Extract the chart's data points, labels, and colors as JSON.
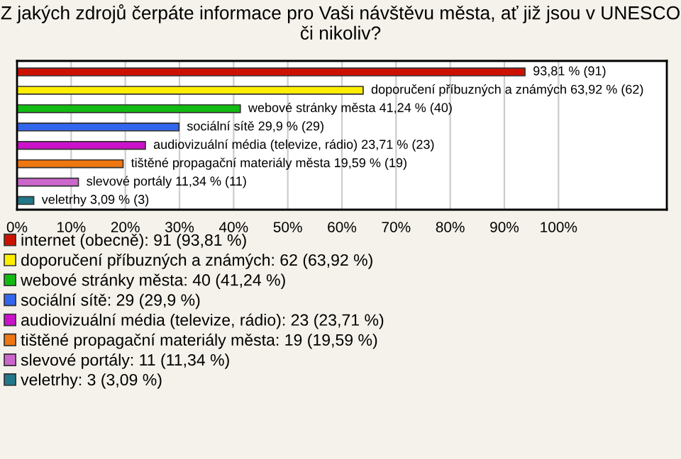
{
  "chart_data": {
    "type": "bar",
    "orientation": "horizontal",
    "title": "Z jakých zdrojů čerpáte informace pro Vaši návštěvu města, ať již jsou v UNESCO či nikoliv?",
    "categories": [
      null,
      null,
      null,
      null,
      null,
      null,
      null,
      null
    ],
    "series": [
      {
        "name": "internet (obecně): 91 (93,81 %)",
        "color": "#cc1100",
        "values": [
          93.81,
          null,
          null,
          null,
          null,
          null,
          null,
          null
        ],
        "value_labels": [
          "93,81 % (91)",
          null,
          null,
          null,
          null,
          null,
          null,
          null
        ]
      },
      {
        "name": "doporučení příbuzných a známých: 62 (63,92 %)",
        "color": "#ffee00",
        "values": [
          null,
          63.92,
          null,
          null,
          null,
          null,
          null,
          null
        ],
        "value_labels": [
          null,
          "doporučení příbuzných a známých 63,92 % (62)",
          null,
          null,
          null,
          null,
          null,
          null
        ]
      },
      {
        "name": "webové stránky města: 40 (41,24 %)",
        "color": "#11bb11",
        "values": [
          null,
          null,
          41.24,
          null,
          null,
          null,
          null,
          null
        ],
        "value_labels": [
          null,
          null,
          "webové stránky města 41,24 % (40)",
          null,
          null,
          null,
          null,
          null
        ]
      },
      {
        "name": "sociální sítě: 29 (29,9 %)",
        "color": "#3366ee",
        "values": [
          null,
          null,
          null,
          29.9,
          null,
          null,
          null,
          null
        ],
        "value_labels": [
          null,
          null,
          null,
          "sociální sítě 29,9 % (29)",
          null,
          null,
          null,
          null
        ]
      },
      {
        "name": "audiovizuální média (televize, rádio): 23 (23,71 %)",
        "color": "#cc11cc",
        "values": [
          null,
          null,
          null,
          null,
          23.71,
          null,
          null,
          null
        ],
        "value_labels": [
          null,
          null,
          null,
          null,
          "audiovizuální média (televize, rádio) 23,71 % (23)",
          null,
          null,
          null
        ]
      },
      {
        "name": "tištěné propagační materiály města: 19 (19,59 %)",
        "color": "#ee7711",
        "values": [
          null,
          null,
          null,
          null,
          null,
          19.59,
          null,
          null
        ],
        "value_labels": [
          null,
          null,
          null,
          null,
          null,
          "tištěné propagační materiály města 19,59 % (19)",
          null,
          null
        ]
      },
      {
        "name": "slevové portály: 11 (11,34 %)",
        "color": "#cc66cc",
        "values": [
          null,
          null,
          null,
          null,
          null,
          null,
          11.34,
          null
        ],
        "value_labels": [
          null,
          null,
          null,
          null,
          null,
          null,
          "slevové portály 11,34 % (11)",
          null
        ]
      },
      {
        "name": "veletrhy: 3 (3,09 %)",
        "color": "#227788",
        "values": [
          null,
          null,
          null,
          null,
          null,
          null,
          null,
          3.09
        ],
        "value_labels": [
          null,
          null,
          null,
          null,
          null,
          null,
          null,
          "veletrhy 3,09 % (3)"
        ]
      }
    ],
    "xlim": [
      0,
      120
    ],
    "xticks": [
      {
        "value": 0,
        "label": "0%"
      },
      {
        "value": 10,
        "label": "10%"
      },
      {
        "value": 20,
        "label": "20%"
      },
      {
        "value": 30,
        "label": "30%"
      },
      {
        "value": 40,
        "label": "40%"
      },
      {
        "value": 50,
        "label": "50%"
      },
      {
        "value": 60,
        "label": "60%"
      },
      {
        "value": 70,
        "label": "70%"
      },
      {
        "value": 80,
        "label": "80%"
      },
      {
        "value": 90,
        "label": "90%"
      },
      {
        "value": 100,
        "label": "100%"
      }
    ],
    "grid": "x",
    "legend": "bottom"
  }
}
